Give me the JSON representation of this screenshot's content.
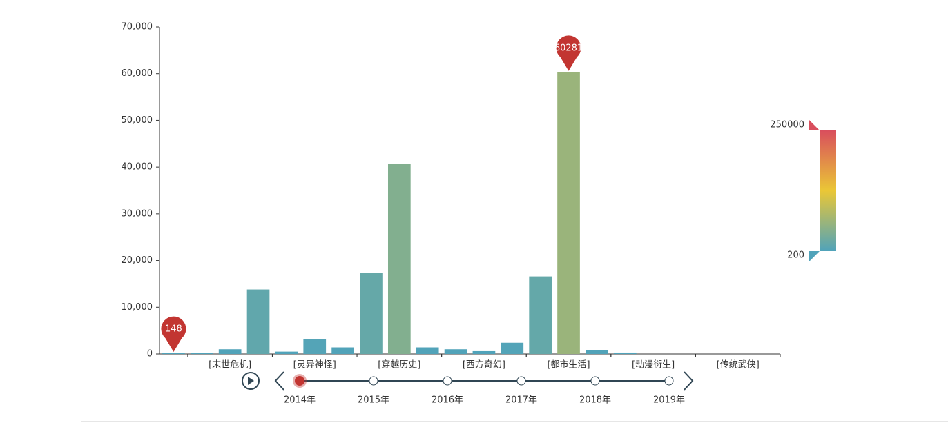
{
  "chart_data": {
    "type": "bar",
    "categories": [
      null,
      null,
      "[末世危机]",
      null,
      null,
      "[灵异神怪]",
      null,
      null,
      "[穿越历史]",
      null,
      null,
      "[西方奇幻]",
      null,
      null,
      "[都市生活]",
      null,
      null,
      "[动漫衍生]",
      null,
      null,
      "[传统武侠]",
      null
    ],
    "values": [
      148,
      200,
      1000,
      13800,
      500,
      3100,
      1400,
      17300,
      40700,
      1400,
      1000,
      600,
      2400,
      16600,
      60281,
      800,
      300,
      0,
      0,
      0,
      0,
      0
    ],
    "ylim": [
      0,
      70000
    ],
    "yticks": [
      0,
      {
        "value": 10000,
        "label": "10,000"
      },
      {
        "value": 20000,
        "label": "20,000"
      },
      {
        "value": 30000,
        "label": "30,000"
      },
      {
        "value": 40000,
        "label": "40,000"
      },
      {
        "value": 50000,
        "label": "50,000"
      },
      {
        "value": 60000,
        "label": "60,000"
      },
      {
        "value": 70000,
        "label": "70,000"
      }
    ],
    "visual_map": {
      "min": 200,
      "max": 250000,
      "colors": [
        "#50a3ba",
        "#eac736",
        "#d94e5d"
      ]
    },
    "pin_color": "#c23531",
    "timeline": {
      "data": [
        "2014年",
        "2015年",
        "2016年",
        "2017年",
        "2018年",
        "2019年"
      ],
      "current": 0
    }
  }
}
